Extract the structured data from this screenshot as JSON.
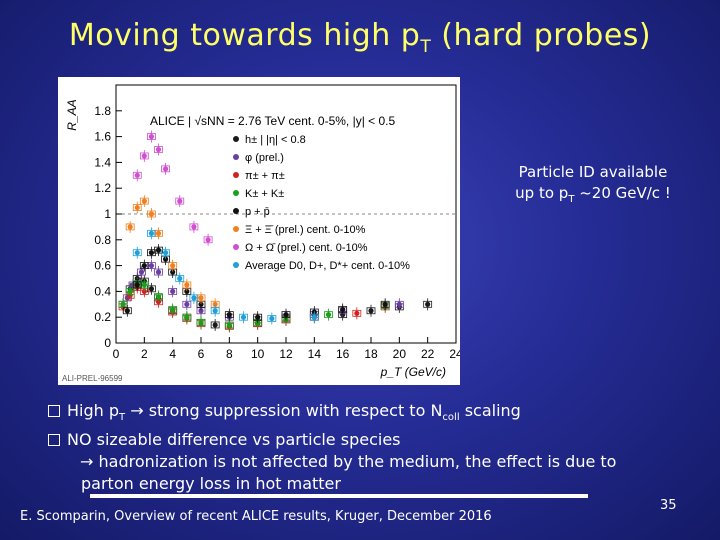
{
  "slide": {
    "title_prefix": "Moving towards high p",
    "title_sub": "T",
    "title_suffix": " (hard probes)",
    "side_note": {
      "line1": "Particle ID available",
      "line2_prefix": "up to p",
      "line2_sub": "T",
      "line2_suffix": " ~20 GeV/c !"
    },
    "bullets": {
      "b1_prefix": "High p",
      "b1_sub": "T",
      "b1_arrow": "→",
      "b1_middle": " strong suppression with respect to N",
      "b1_sub2": "coll",
      "b1_suffix": " scaling",
      "b2": "NO sizeable difference vs particle species",
      "b2_arrow": "→",
      "b2_cont": " hadronization is not affected by the medium, the effect is due to",
      "b2_cont2": "parton energy loss in hot matter"
    },
    "footer": "E. Scomparin, Overview of recent ALICE results, Kruger, December 2016",
    "page_number": "35"
  },
  "chart_data": {
    "type": "scatter",
    "ylabel": "R_AA",
    "xlabel": "p_T (GeV/c)",
    "xlim": [
      0,
      24
    ],
    "ylim": [
      0,
      2
    ],
    "x_ticks": [
      "0",
      "2",
      "4",
      "6",
      "8",
      "10",
      "12",
      "14",
      "16",
      "18",
      "20",
      "22",
      "24"
    ],
    "y_ticks": [
      "0",
      "0.2",
      "0.4",
      "0.6",
      "0.8",
      "1",
      "1.2",
      "1.4",
      "1.6",
      "1.8"
    ],
    "legend_header": "ALICE | √sNN = 2.76 TeV cent. 0-5%, |y| < 0.5",
    "legend_entries": [
      "h± | |η| < 0.8",
      "φ (prel.)",
      "π± + π±",
      "K± + K±",
      "p + p̄",
      "Ξ + Ξ̄ (prel.) cent. 0-10%",
      "Ω + Ω̄ (prel.) cent. 0-10%",
      "Average D0, D+, D*+ cent. 0-10%"
    ],
    "watermark": "ALI-PREL-96599",
    "legend_placement": "top-right",
    "colors": {
      "hadrons": "#1a1a1a",
      "phi": "#6b3fa0",
      "pion": "#d42020",
      "kaon": "#1aa01a",
      "proton": "#111111",
      "xi": "#f08020",
      "omega": "#d050d0",
      "dmeson": "#20a0d8"
    },
    "series": [
      {
        "name": "hadrons",
        "points": [
          [
            0.5,
            0.3
          ],
          [
            1,
            0.42
          ],
          [
            1.5,
            0.5
          ],
          [
            2,
            0.48
          ],
          [
            2.5,
            0.42
          ],
          [
            3,
            0.35
          ],
          [
            4,
            0.25
          ],
          [
            5,
            0.2
          ],
          [
            6,
            0.16
          ],
          [
            7,
            0.14
          ],
          [
            8,
            0.13
          ],
          [
            10,
            0.15
          ],
          [
            12,
            0.18
          ],
          [
            14,
            0.2
          ],
          [
            16,
            0.22
          ],
          [
            18,
            0.25
          ],
          [
            20,
            0.28
          ],
          [
            22,
            0.3
          ]
        ]
      },
      {
        "name": "phi",
        "points": [
          [
            0.8,
            0.35
          ],
          [
            1.2,
            0.45
          ],
          [
            1.8,
            0.55
          ],
          [
            2.5,
            0.6
          ],
          [
            3,
            0.55
          ],
          [
            4,
            0.4
          ],
          [
            5,
            0.3
          ],
          [
            6,
            0.25
          ],
          [
            8,
            0.2
          ],
          [
            10,
            0.18
          ],
          [
            12,
            0.2
          ],
          [
            14,
            0.22
          ],
          [
            16,
            0.25
          ],
          [
            20,
            0.3
          ]
        ]
      },
      {
        "name": "pion",
        "points": [
          [
            0.5,
            0.28
          ],
          [
            1,
            0.37
          ],
          [
            1.5,
            0.43
          ],
          [
            2,
            0.4
          ],
          [
            3,
            0.32
          ],
          [
            4,
            0.24
          ],
          [
            5,
            0.19
          ],
          [
            6,
            0.15
          ],
          [
            8,
            0.13
          ],
          [
            10,
            0.15
          ],
          [
            12,
            0.18
          ],
          [
            14,
            0.2
          ],
          [
            17,
            0.23
          ],
          [
            19,
            0.28
          ]
        ]
      },
      {
        "name": "kaon",
        "points": [
          [
            0.5,
            0.3
          ],
          [
            1,
            0.4
          ],
          [
            1.5,
            0.46
          ],
          [
            2,
            0.45
          ],
          [
            3,
            0.36
          ],
          [
            4,
            0.26
          ],
          [
            5,
            0.2
          ],
          [
            6,
            0.16
          ],
          [
            8,
            0.14
          ],
          [
            10,
            0.16
          ],
          [
            12,
            0.19
          ],
          [
            15,
            0.22
          ],
          [
            19,
            0.29
          ]
        ]
      },
      {
        "name": "proton",
        "points": [
          [
            0.8,
            0.25
          ],
          [
            1.5,
            0.45
          ],
          [
            2,
            0.6
          ],
          [
            2.5,
            0.7
          ],
          [
            3,
            0.72
          ],
          [
            3.5,
            0.65
          ],
          [
            4,
            0.55
          ],
          [
            5,
            0.4
          ],
          [
            6,
            0.3
          ],
          [
            8,
            0.22
          ],
          [
            10,
            0.2
          ],
          [
            12,
            0.22
          ],
          [
            14,
            0.24
          ],
          [
            16,
            0.26
          ],
          [
            19,
            0.3
          ]
        ]
      },
      {
        "name": "xi",
        "points": [
          [
            1,
            0.9
          ],
          [
            1.5,
            1.05
          ],
          [
            2,
            1.1
          ],
          [
            2.5,
            1.0
          ],
          [
            3,
            0.85
          ],
          [
            4,
            0.6
          ],
          [
            5,
            0.45
          ],
          [
            6,
            0.35
          ],
          [
            7,
            0.3
          ]
        ]
      },
      {
        "name": "omega",
        "points": [
          [
            1.5,
            1.3
          ],
          [
            2,
            1.45
          ],
          [
            2.5,
            1.6
          ],
          [
            3,
            1.5
          ],
          [
            3.5,
            1.35
          ],
          [
            4.5,
            1.1
          ],
          [
            5.5,
            0.9
          ],
          [
            6.5,
            0.8
          ]
        ]
      },
      {
        "name": "dmeson",
        "points": [
          [
            1.5,
            0.7
          ],
          [
            2.5,
            0.85
          ],
          [
            3.5,
            0.7
          ],
          [
            4.5,
            0.5
          ],
          [
            5.5,
            0.35
          ],
          [
            7,
            0.25
          ],
          [
            9,
            0.2
          ],
          [
            11,
            0.19
          ],
          [
            14,
            0.2
          ]
        ]
      }
    ]
  }
}
